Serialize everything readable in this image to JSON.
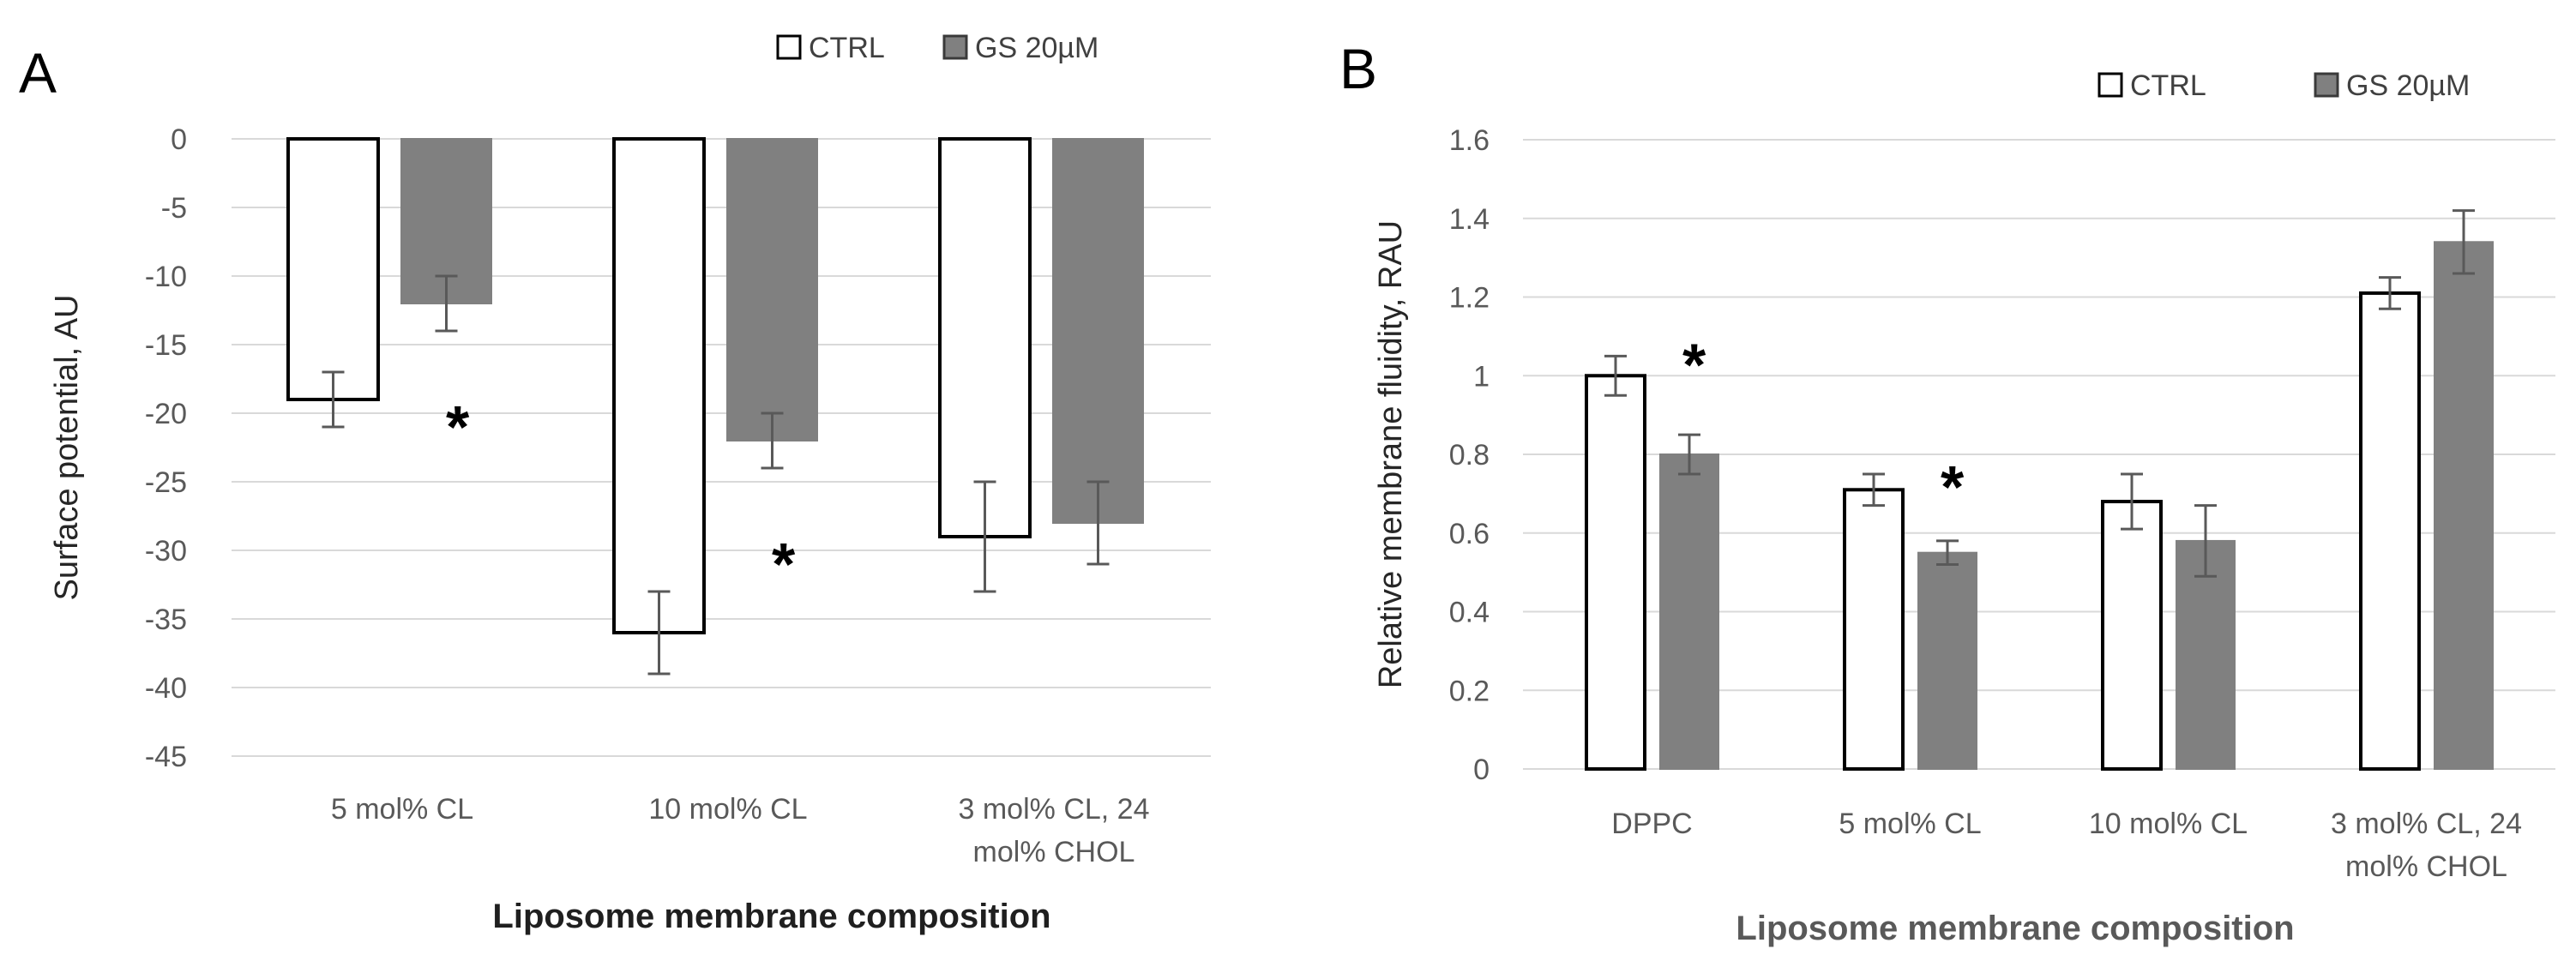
{
  "chart_data": [
    {
      "panel": "A",
      "type": "bar",
      "ylabel": "Surface potential, AU",
      "xlabel": "Liposome membrane composition",
      "categories": [
        [
          "5 mol% CL"
        ],
        [
          "10 mol% CL"
        ],
        [
          "3 mol% CL, 24",
          "mol% CHOL"
        ]
      ],
      "ylim": [
        -45,
        0
      ],
      "yticks": [
        0,
        -5,
        -10,
        -15,
        -20,
        -25,
        -30,
        -35,
        -40,
        -45
      ],
      "grid": true,
      "legend_position": "top",
      "series": [
        {
          "name": "CTRL",
          "color": "#ffffff",
          "values": [
            -19,
            -36,
            -29
          ],
          "errors": [
            2,
            3,
            4
          ]
        },
        {
          "name": "GS 20µM",
          "color": "#808080",
          "values": [
            -12,
            -22,
            -28
          ],
          "errors": [
            2,
            2,
            3
          ]
        }
      ],
      "annotations": [
        {
          "text": "*",
          "category_index": 0,
          "value": -19.5
        },
        {
          "text": "*",
          "category_index": 1,
          "value": -29.5
        }
      ]
    },
    {
      "panel": "B",
      "type": "bar",
      "ylabel": "Relative membrane fluidity, RAU",
      "xlabel": "Liposome membrane composition",
      "categories": [
        [
          "DPPC"
        ],
        [
          "5 mol% CL"
        ],
        [
          "10 mol% CL"
        ],
        [
          "3 mol% CL, 24",
          "mol% CHOL"
        ]
      ],
      "ylim": [
        0,
        1.6
      ],
      "yticks": [
        0,
        0.2,
        0.4,
        0.6,
        0.8,
        1,
        1.2,
        1.4,
        1.6
      ],
      "grid": true,
      "legend_position": "top-right",
      "series": [
        {
          "name": "CTRL",
          "color": "#ffffff",
          "values": [
            1.0,
            0.71,
            0.68,
            1.21
          ],
          "errors": [
            0.05,
            0.04,
            0.07,
            0.04
          ]
        },
        {
          "name": "GS 20µM",
          "color": "#808080",
          "values": [
            0.8,
            0.55,
            0.58,
            1.34
          ],
          "errors": [
            0.05,
            0.03,
            0.09,
            0.08
          ]
        }
      ],
      "annotations": [
        {
          "text": "*",
          "category_index": 0,
          "value": 1.08
        },
        {
          "text": "*",
          "category_index": 1,
          "value": 0.77
        }
      ]
    }
  ]
}
